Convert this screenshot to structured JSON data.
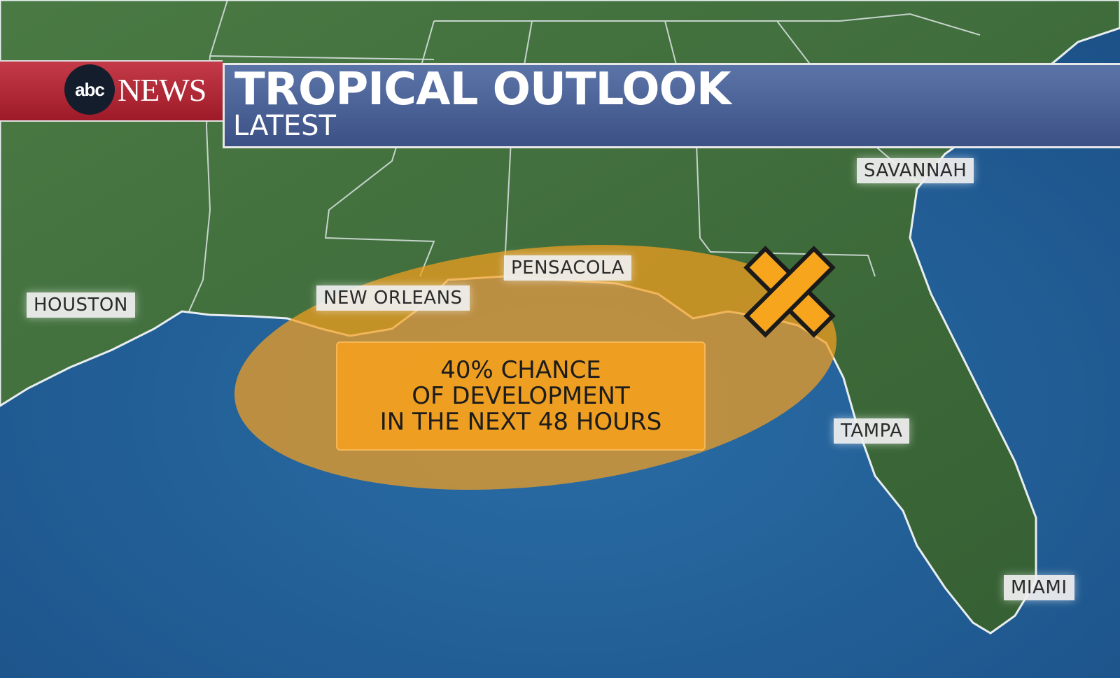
{
  "header": {
    "brand_abc": "abc",
    "brand_news": "NEWS",
    "title": "TROPICAL OUTLOOK",
    "subtitle": "LATEST"
  },
  "cities": {
    "houston": "HOUSTON",
    "new_orleans": "NEW ORLEANS",
    "pensacola": "PENSACOLA",
    "savannah": "SAVANNAH",
    "tampa": "TAMPA",
    "miami": "MIAMI"
  },
  "outlook": {
    "line1": "40% CHANCE",
    "line2": "OF DEVELOPMENT",
    "line3": "IN THE NEXT 48 HOURS",
    "chance_percent": 40,
    "area_color": "#f5a01e",
    "marker_icon": "x-marker-icon"
  },
  "colors": {
    "land": "#3f6e3a",
    "water": "#1f5d93",
    "brand_red": "#b02636",
    "title_blue": "#4a6198"
  }
}
